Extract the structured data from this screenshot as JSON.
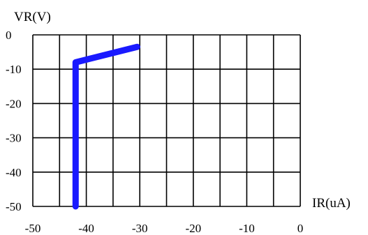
{
  "chart_data": {
    "type": "line",
    "title": "",
    "xlabel": "IR(uA)",
    "ylabel": "VR(V)",
    "xlim": [
      -50,
      0
    ],
    "ylim": [
      -50,
      0
    ],
    "x_ticks": [
      "-50",
      "-40",
      "-30",
      "-20",
      "-10",
      "0"
    ],
    "y_ticks": [
      "0",
      "-10",
      "-20",
      "-30",
      "-40",
      "-50"
    ],
    "x_grid_values": [
      -50,
      -45,
      -40,
      -35,
      -30,
      -25,
      -20,
      -15,
      -10,
      -5,
      0
    ],
    "y_grid_values": [
      -50,
      -40,
      -30,
      -20,
      -10,
      0
    ],
    "grid": true,
    "series": [
      {
        "color": "#1a1aff",
        "points": [
          {
            "x": -42,
            "y": -50
          },
          {
            "x": -42,
            "y": -8
          },
          {
            "x": -30.5,
            "y": -3.5
          }
        ]
      }
    ]
  }
}
